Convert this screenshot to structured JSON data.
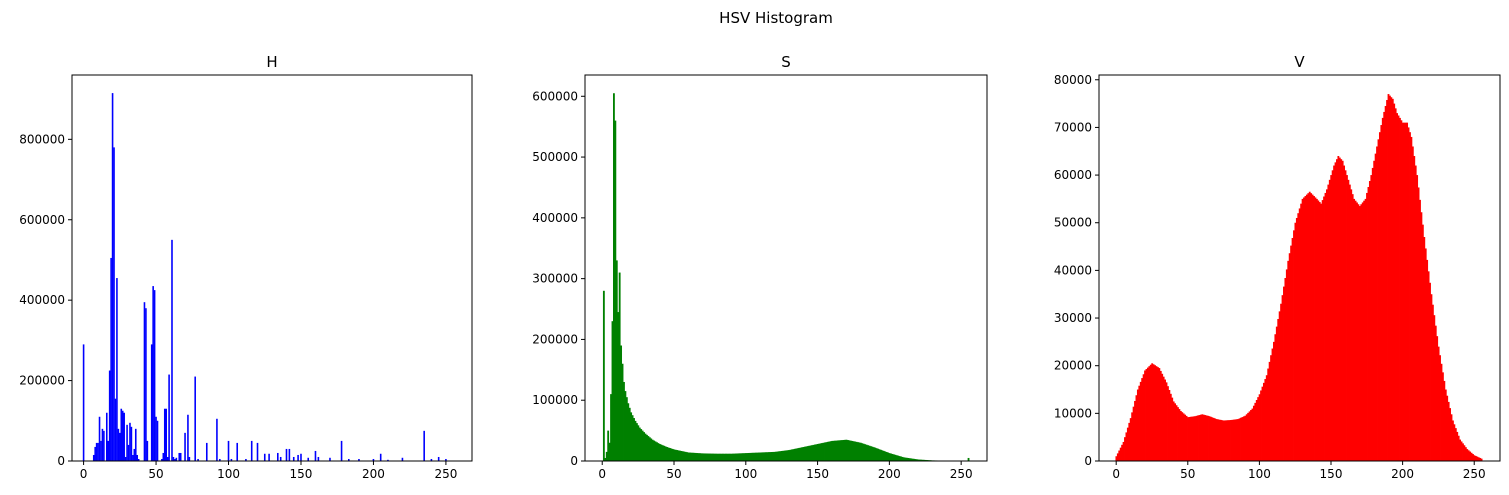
{
  "figure": {
    "suptitle": "HSV Histogram"
  },
  "chart_data": [
    {
      "type": "bar",
      "title": "H",
      "color": "#0000ff",
      "xlim": [
        -8,
        268
      ],
      "ylim": [
        0,
        960000
      ],
      "xticks": [
        0,
        50,
        100,
        150,
        200,
        250
      ],
      "yticks": [
        0,
        200000,
        400000,
        600000,
        800000
      ],
      "x": [
        0,
        7,
        8,
        9,
        10,
        11,
        12,
        13,
        14,
        16,
        17,
        18,
        19,
        20,
        21,
        22,
        23,
        24,
        25,
        26,
        27,
        28,
        29,
        30,
        31,
        32,
        33,
        34,
        35,
        36,
        37,
        38,
        42,
        43,
        44,
        47,
        48,
        49,
        50,
        51,
        54,
        55,
        56,
        57,
        58,
        59,
        61,
        62,
        63,
        64,
        66,
        67,
        70,
        72,
        73,
        77,
        79,
        85,
        92,
        94,
        100,
        102,
        106,
        112,
        116,
        120,
        125,
        128,
        134,
        136,
        140,
        142,
        145,
        148,
        150,
        155,
        160,
        162,
        170,
        178,
        183,
        190,
        200,
        205,
        210,
        220,
        235,
        240,
        245,
        250
      ],
      "values": [
        290000,
        15000,
        35000,
        45000,
        45000,
        110000,
        50000,
        80000,
        75000,
        120000,
        50000,
        225000,
        505000,
        915000,
        780000,
        155000,
        455000,
        80000,
        70000,
        130000,
        125000,
        120000,
        10000,
        90000,
        40000,
        95000,
        85000,
        15000,
        30000,
        80000,
        15000,
        5000,
        395000,
        380000,
        50000,
        290000,
        435000,
        425000,
        110000,
        100000,
        5000,
        20000,
        130000,
        130000,
        10000,
        215000,
        550000,
        10000,
        5000,
        8000,
        20000,
        20000,
        70000,
        115000,
        10000,
        210000,
        5000,
        45000,
        105000,
        5000,
        50000,
        5000,
        45000,
        5000,
        50000,
        45000,
        18000,
        18000,
        20000,
        10000,
        30000,
        30000,
        10000,
        15000,
        18000,
        8000,
        25000,
        10000,
        8000,
        50000,
        5000,
        5000,
        5000,
        18000,
        3000,
        8000,
        75000,
        5000,
        10000,
        5000
      ]
    },
    {
      "type": "bar",
      "title": "S",
      "color": "#008000",
      "xlim": [
        -12,
        268
      ],
      "ylim": [
        0,
        635000
      ],
      "xticks": [
        0,
        50,
        100,
        150,
        200,
        250
      ],
      "yticks": [
        0,
        100000,
        200000,
        300000,
        400000,
        500000,
        600000
      ],
      "peaks": [
        [
          0,
          0
        ],
        [
          1,
          280000
        ],
        [
          2,
          5000
        ],
        [
          3,
          15000
        ],
        [
          4,
          50000
        ],
        [
          5,
          30000
        ],
        [
          6,
          110000
        ],
        [
          7,
          230000
        ],
        [
          8,
          605000
        ],
        [
          9,
          560000
        ],
        [
          10,
          330000
        ],
        [
          11,
          245000
        ],
        [
          12,
          310000
        ],
        [
          13,
          190000
        ],
        [
          14,
          160000
        ],
        [
          15,
          130000
        ],
        [
          16,
          115000
        ],
        [
          18,
          95000
        ],
        [
          20,
          80000
        ],
        [
          23,
          66000
        ],
        [
          26,
          55000
        ],
        [
          30,
          45000
        ],
        [
          35,
          35000
        ],
        [
          40,
          28000
        ],
        [
          45,
          23000
        ],
        [
          50,
          19000
        ],
        [
          60,
          14000
        ],
        [
          70,
          12500
        ],
        [
          80,
          12000
        ],
        [
          90,
          12000
        ],
        [
          100,
          13000
        ],
        [
          110,
          14000
        ],
        [
          120,
          15000
        ],
        [
          130,
          18000
        ],
        [
          140,
          23000
        ],
        [
          150,
          28000
        ],
        [
          160,
          33000
        ],
        [
          170,
          35000
        ],
        [
          180,
          30000
        ],
        [
          190,
          22000
        ],
        [
          200,
          13000
        ],
        [
          210,
          6000
        ],
        [
          220,
          2500
        ],
        [
          230,
          1000
        ],
        [
          240,
          500
        ],
        [
          254,
          300
        ],
        [
          255,
          5000
        ]
      ]
    },
    {
      "type": "bar",
      "title": "V",
      "color": "#ff0000",
      "xlim": [
        -12,
        268
      ],
      "ylim": [
        0,
        81000
      ],
      "xticks": [
        0,
        50,
        100,
        150,
        200,
        250
      ],
      "yticks": [
        0,
        10000,
        20000,
        30000,
        40000,
        50000,
        60000,
        70000,
        80000
      ],
      "peaks": [
        [
          0,
          1000
        ],
        [
          5,
          4000
        ],
        [
          10,
          9000
        ],
        [
          15,
          15000
        ],
        [
          20,
          19000
        ],
        [
          25,
          20500
        ],
        [
          30,
          19500
        ],
        [
          35,
          16500
        ],
        [
          40,
          12500
        ],
        [
          45,
          10500
        ],
        [
          50,
          9200
        ],
        [
          55,
          9400
        ],
        [
          60,
          9800
        ],
        [
          65,
          9400
        ],
        [
          70,
          8800
        ],
        [
          75,
          8500
        ],
        [
          80,
          8600
        ],
        [
          85,
          8800
        ],
        [
          90,
          9500
        ],
        [
          95,
          11000
        ],
        [
          100,
          14000
        ],
        [
          105,
          18000
        ],
        [
          110,
          25000
        ],
        [
          115,
          33000
        ],
        [
          120,
          42000
        ],
        [
          125,
          50000
        ],
        [
          130,
          55000
        ],
        [
          135,
          56500
        ],
        [
          140,
          55000
        ],
        [
          143,
          54000
        ],
        [
          147,
          57000
        ],
        [
          152,
          62000
        ],
        [
          155,
          64000
        ],
        [
          158,
          63000
        ],
        [
          162,
          59000
        ],
        [
          166,
          55000
        ],
        [
          170,
          53500
        ],
        [
          174,
          55000
        ],
        [
          178,
          60000
        ],
        [
          182,
          66000
        ],
        [
          186,
          72000
        ],
        [
          190,
          77000
        ],
        [
          193,
          76000
        ],
        [
          196,
          73000
        ],
        [
          200,
          71000
        ],
        [
          203,
          71000
        ],
        [
          206,
          68000
        ],
        [
          210,
          60000
        ],
        [
          215,
          47000
        ],
        [
          220,
          35000
        ],
        [
          225,
          24000
        ],
        [
          230,
          15000
        ],
        [
          235,
          8500
        ],
        [
          240,
          4500
        ],
        [
          245,
          2500
        ],
        [
          250,
          1200
        ],
        [
          255,
          500
        ]
      ]
    }
  ]
}
